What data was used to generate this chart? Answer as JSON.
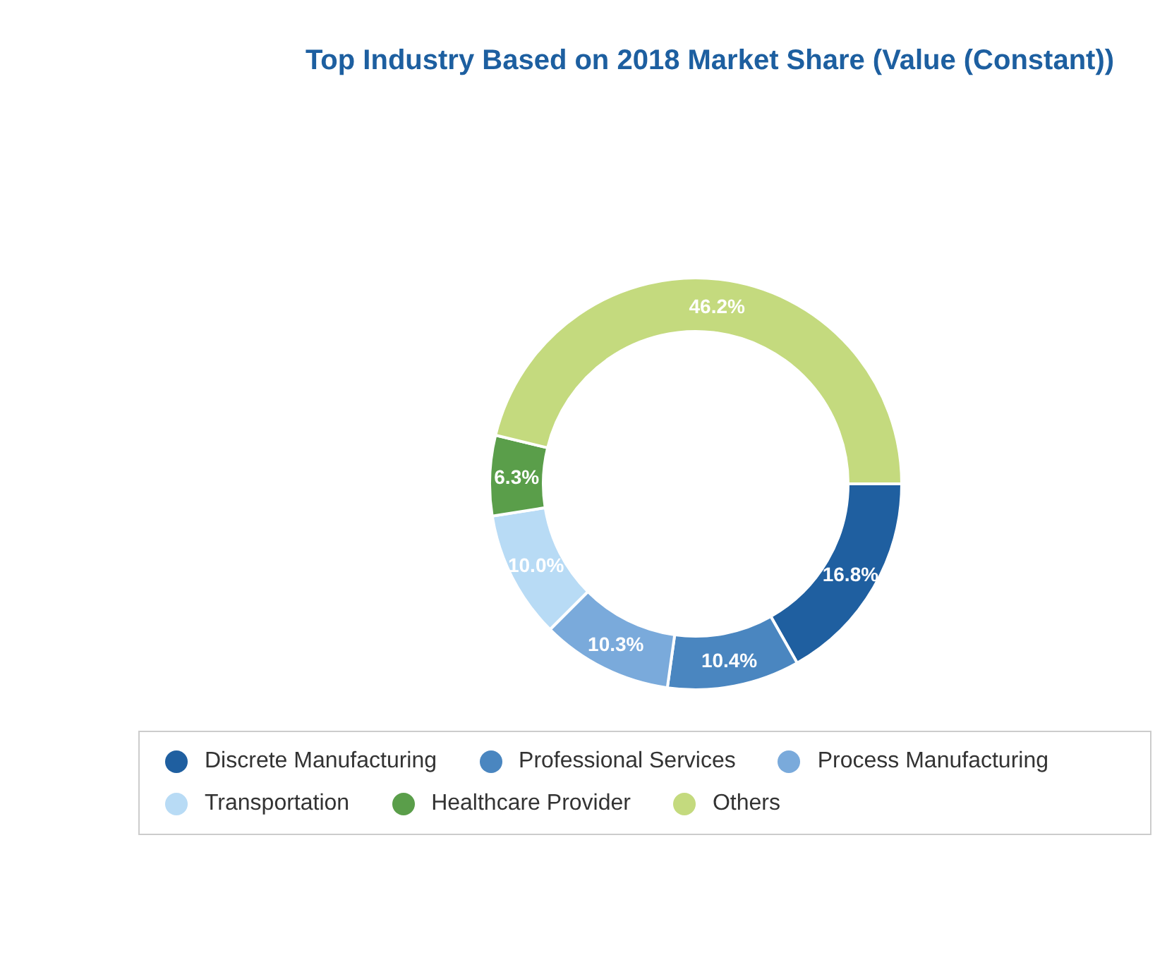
{
  "chart_data": {
    "type": "donut",
    "title": "Top Industry Based on 2018 Market Share (Value (Constant))",
    "categories": [
      "Discrete Manufacturing",
      "Professional Services",
      "Process Manufacturing",
      "Transportation",
      "Healthcare Provider",
      "Others"
    ],
    "values": [
      16.8,
      10.4,
      10.3,
      10.0,
      6.3,
      46.2
    ],
    "value_labels": [
      "16.8%",
      "10.4%",
      "10.3%",
      "10.0%",
      "6.3%",
      "46.2%"
    ],
    "colors": [
      "#1f5fa0",
      "#4a86c0",
      "#7aaadb",
      "#b8dbf5",
      "#5a9e4a",
      "#c4da7e"
    ],
    "legend": "bottom"
  }
}
